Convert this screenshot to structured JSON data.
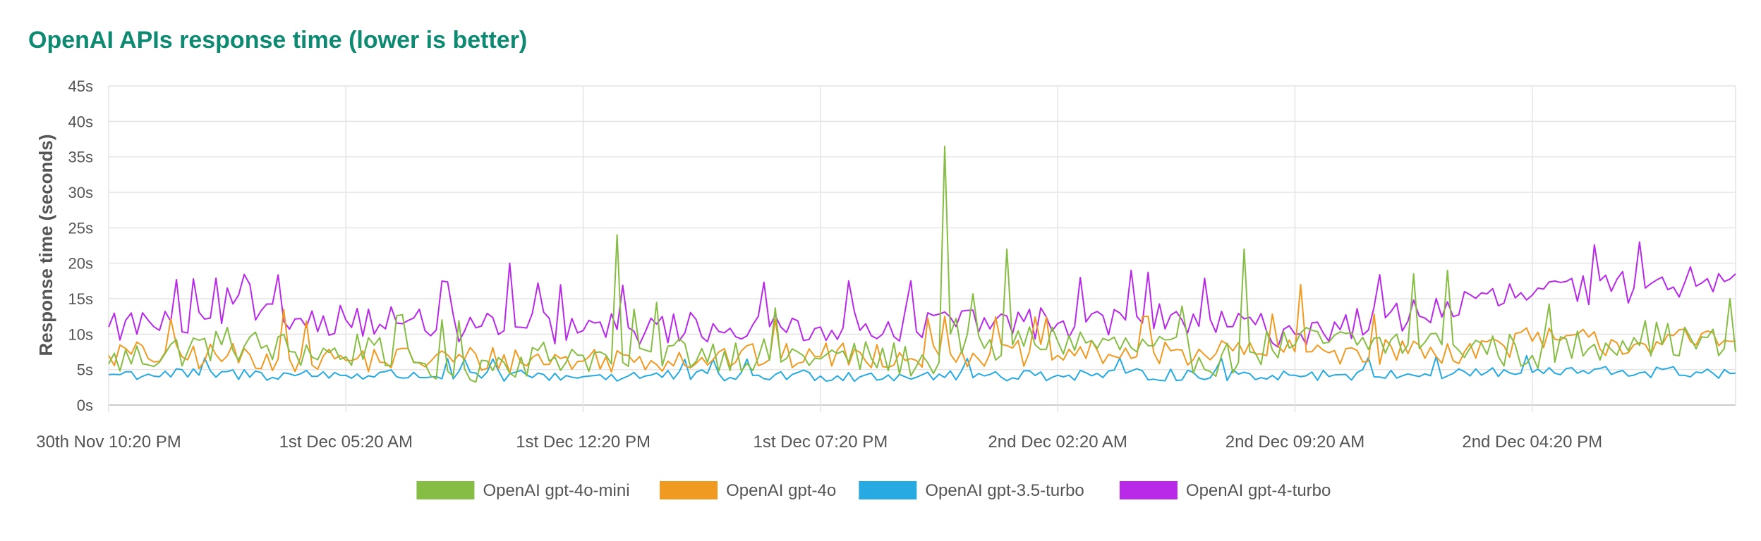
{
  "chart_data": {
    "type": "line",
    "title": "OpenAI APIs response time (lower is better)",
    "xlabel": "",
    "ylabel": "Response time (seconds)",
    "ylim": [
      0,
      45
    ],
    "y_ticks": [
      {
        "value": 0,
        "label": "0s"
      },
      {
        "value": 5,
        "label": "5s"
      },
      {
        "value": 10,
        "label": "10s"
      },
      {
        "value": 15,
        "label": "15s"
      },
      {
        "value": 20,
        "label": "20s"
      },
      {
        "value": 25,
        "label": "25s"
      },
      {
        "value": 30,
        "label": "30s"
      },
      {
        "value": 35,
        "label": "35s"
      },
      {
        "value": 40,
        "label": "40s"
      },
      {
        "value": 45,
        "label": "45s"
      }
    ],
    "x_tick_labels": [
      "30th Nov 10:20 PM",
      "1st Dec 05:20 AM",
      "1st Dec 12:20 PM",
      "1st Dec 07:20 PM",
      "2nd Dec 02:20 AM",
      "2nd Dec 09:20 AM",
      "2nd Dec 04:20 PM"
    ],
    "x_tick_samples": [
      0,
      42,
      84,
      126,
      168,
      210,
      252
    ],
    "x_interval": "10 minutes",
    "n_samples": 289,
    "grid": true,
    "legend_position": "bottom",
    "series": [
      {
        "name": "OpenAI gpt-4o-mini",
        "color": "#86bd44",
        "key_points": [
          [
            0,
            5.8
          ],
          [
            20,
            8.5
          ],
          [
            42,
            6.8
          ],
          [
            48,
            9.5
          ],
          [
            50,
            5.6
          ],
          [
            55,
            6.0
          ],
          [
            60,
            4.8
          ],
          [
            70,
            6.0
          ],
          [
            84,
            7.0
          ],
          [
            89,
            5.8
          ],
          [
            90,
            24.0
          ],
          [
            91,
            6.0
          ],
          [
            96,
            7.5
          ],
          [
            126,
            6.5
          ],
          [
            147,
            6.0
          ],
          [
            148,
            36.5
          ],
          [
            149,
            10.0
          ],
          [
            155,
            8.0
          ],
          [
            158,
            7.0
          ],
          [
            159,
            22.0
          ],
          [
            160,
            8.5
          ],
          [
            168,
            9.0
          ],
          [
            200,
            6.0
          ],
          [
            201,
            22.0
          ],
          [
            202,
            7.5
          ],
          [
            210,
            8.5
          ],
          [
            230,
            8.5
          ],
          [
            231,
            18.5
          ],
          [
            232,
            8.0
          ],
          [
            236,
            8.5
          ],
          [
            237,
            19.0
          ],
          [
            238,
            8.5
          ],
          [
            252,
            7.0
          ],
          [
            270,
            9.5
          ],
          [
            286,
            8.0
          ],
          [
            287,
            15.0
          ],
          [
            288,
            7.5
          ]
        ],
        "noise": 2.6
      },
      {
        "name": "OpenAI gpt-4o",
        "color": "#f09a22",
        "key_points": [
          [
            0,
            7.0
          ],
          [
            30,
            6.5
          ],
          [
            31,
            13.5
          ],
          [
            32,
            6.5
          ],
          [
            42,
            6.3
          ],
          [
            84,
            6.2
          ],
          [
            126,
            6.8
          ],
          [
            147,
            7.0
          ],
          [
            148,
            12.5
          ],
          [
            149,
            7.2
          ],
          [
            168,
            7.0
          ],
          [
            210,
            7.5
          ],
          [
            211,
            17.0
          ],
          [
            212,
            7.5
          ],
          [
            240,
            7.5
          ],
          [
            252,
            9.0
          ],
          [
            270,
            8.5
          ],
          [
            288,
            9.0
          ]
        ],
        "noise": 2.0
      },
      {
        "name": "OpenAI gpt-3.5-turbo",
        "color": "#27aae1",
        "key_points": [
          [
            0,
            4.3
          ],
          [
            42,
            4.2
          ],
          [
            84,
            4.0
          ],
          [
            126,
            4.1
          ],
          [
            168,
            4.2
          ],
          [
            210,
            4.2
          ],
          [
            252,
            4.6
          ],
          [
            288,
            4.5
          ]
        ],
        "noise": 0.9
      },
      {
        "name": "OpenAI gpt-4-turbo",
        "color": "#b82ae8",
        "key_points": [
          [
            0,
            11.0
          ],
          [
            20,
            11.5
          ],
          [
            21,
            16.5
          ],
          [
            23,
            15.5
          ],
          [
            25,
            17.0
          ],
          [
            26,
            12.0
          ],
          [
            42,
            12.0
          ],
          [
            70,
            10.5
          ],
          [
            71,
            20.0
          ],
          [
            72,
            11.0
          ],
          [
            84,
            10.5
          ],
          [
            126,
            11.0
          ],
          [
            168,
            11.5
          ],
          [
            180,
            12.0
          ],
          [
            181,
            19.0
          ],
          [
            182,
            12.5
          ],
          [
            210,
            10.0
          ],
          [
            252,
            15.5
          ],
          [
            270,
            16.5
          ],
          [
            271,
            23.0
          ],
          [
            272,
            16.5
          ],
          [
            288,
            18.5
          ]
        ],
        "noise": 2.4
      }
    ]
  }
}
